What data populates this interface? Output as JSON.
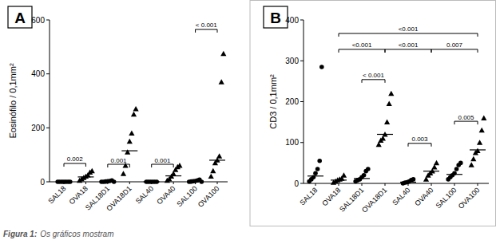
{
  "chart_data": [
    {
      "type": "scatter",
      "panel": "A",
      "y_label": "Eosinófilo / 0,1mm²",
      "categories": [
        "SAL18",
        "OVA18",
        "SAL18D1",
        "OVA18D1",
        "SAL40",
        "OVA40",
        "SAL100",
        "OVA100"
      ],
      "markers": [
        "circle",
        "triangle",
        "circle",
        "triangle",
        "circle",
        "triangle",
        "circle",
        "triangle"
      ],
      "color": "#000000",
      "values": [
        [
          0,
          0,
          0,
          0,
          0,
          0,
          0
        ],
        [
          5,
          10,
          15,
          20,
          25,
          35,
          40
        ],
        [
          0,
          0,
          1,
          2,
          3,
          5,
          0
        ],
        [
          30,
          60,
          110,
          150,
          180,
          250,
          270
        ],
        [
          0,
          0,
          0,
          0,
          0,
          0
        ],
        [
          5,
          10,
          20,
          30,
          45,
          55,
          60
        ],
        [
          0,
          1,
          2,
          3,
          5,
          8,
          0
        ],
        [
          20,
          40,
          70,
          80,
          95,
          370,
          475
        ]
      ],
      "medians": [
        0,
        18,
        2,
        115,
        0,
        22,
        2,
        80
      ],
      "comparisons": [
        {
          "from": 0,
          "to": 1,
          "y": 68,
          "label": "0.002"
        },
        {
          "from": 2,
          "to": 3,
          "y": 65,
          "label": "0.001"
        },
        {
          "from": 4,
          "to": 5,
          "y": 65,
          "label": "0.001"
        },
        {
          "from": 6,
          "to": 7,
          "y": 565,
          "label": "< 0.001"
        }
      ],
      "ylim": [
        0,
        600
      ],
      "yticks": [
        0,
        200,
        400,
        600
      ],
      "grid": false
    },
    {
      "type": "scatter",
      "panel": "B",
      "y_label": "CD3 / 0,1mm²",
      "categories": [
        "SAL18",
        "OVA18",
        "SAL18D1",
        "OVA18D1",
        "SAL40",
        "OVA40",
        "SAL100",
        "OVA100"
      ],
      "markers": [
        "circle",
        "triangle",
        "circle",
        "triangle",
        "circle",
        "triangle",
        "circle",
        "triangle"
      ],
      "color": "#000000",
      "values": [
        [
          5,
          10,
          15,
          25,
          35,
          55,
          285
        ],
        [
          2,
          5,
          8,
          10,
          12,
          20
        ],
        [
          5,
          8,
          10,
          15,
          20,
          30,
          35
        ],
        [
          95,
          105,
          110,
          120,
          150,
          195,
          220
        ],
        [
          0,
          2,
          3,
          5,
          8,
          10
        ],
        [
          10,
          20,
          25,
          30,
          40,
          50
        ],
        [
          10,
          15,
          20,
          25,
          35,
          45,
          50
        ],
        [
          45,
          60,
          75,
          80,
          100,
          130,
          160
        ]
      ],
      "medians": [
        18,
        8,
        12,
        120,
        3,
        30,
        22,
        82
      ],
      "comparisons": [
        {
          "from": 2,
          "to": 3,
          "y": 254,
          "label": "< 0.001"
        },
        {
          "from": 4,
          "to": 5,
          "y": 98,
          "label": "0.003"
        },
        {
          "from": 6,
          "to": 7,
          "y": 152,
          "label": "0.005"
        },
        {
          "from": 1,
          "to": 3,
          "y": 328,
          "label": "<0.001"
        },
        {
          "from": 3,
          "to": 5,
          "y": 328,
          "label": "<0.001"
        },
        {
          "from": 5,
          "to": 7,
          "y": 328,
          "label": "0.007"
        },
        {
          "from": 1,
          "to": 7,
          "y": 367,
          "label": "<0.001"
        }
      ],
      "ylim": [
        0,
        400
      ],
      "yticks": [
        0,
        100,
        200,
        300,
        400
      ],
      "grid": false
    }
  ],
  "caption": {
    "label": "Figura 1:",
    "text": "Os gráficos mostram"
  }
}
